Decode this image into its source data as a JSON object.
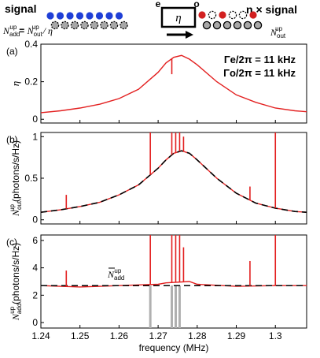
{
  "schematic": {
    "signal_label": "signal",
    "eta_signal_label": "η × signal",
    "coupler_symbol": "η",
    "port_e": "e",
    "port_o": "o",
    "eq_lhs_base": "N",
    "eq_lhs_sub": "add",
    "eq_lhs_sup": "up",
    "eq_eq": "= ",
    "eq_rhs_base": "N",
    "eq_rhs_sub": "out",
    "eq_rhs_sup": "up",
    "eq_tail": " / η",
    "out_base": "N",
    "out_sub": "out",
    "out_sup": "up",
    "colors": {
      "blue": "#1f3fd6",
      "red": "#d22020",
      "gray": "#a8a8a8",
      "dark": "#000000"
    }
  },
  "chart_data": [
    {
      "type": "line",
      "panel_label": "(a)",
      "ylabel": "η",
      "xlim": [
        1.24,
        1.308
      ],
      "ylim": [
        -0.02,
        0.4
      ],
      "yticks": [
        0,
        0.2,
        0.4
      ],
      "ytick_labels": [
        "0",
        "0.2",
        "0.4"
      ],
      "annotations": [
        "Γe/2π = 11 kHz",
        "Γo/2π = 11 kHz"
      ],
      "series": [
        {
          "color": "#e32020",
          "x": [
            1.24,
            1.245,
            1.25,
            1.255,
            1.26,
            1.265,
            1.27,
            1.272,
            1.274,
            1.276,
            1.278,
            1.28,
            1.285,
            1.29,
            1.295,
            1.3,
            1.305,
            1.308
          ],
          "y": [
            0.035,
            0.045,
            0.06,
            0.08,
            0.11,
            0.16,
            0.25,
            0.3,
            0.33,
            0.34,
            0.32,
            0.29,
            0.2,
            0.13,
            0.09,
            0.06,
            0.045,
            0.04
          ]
        }
      ],
      "dip": {
        "x": 1.2735,
        "y": 0.24
      }
    },
    {
      "type": "line",
      "panel_label": "(b)",
      "ylabel_base": "N",
      "ylabel_sub": "out",
      "ylabel_sup": "up",
      "ylabel_unit": "(photons/s/Hz)",
      "xlim": [
        1.24,
        1.308
      ],
      "ylim": [
        -0.05,
        1.05
      ],
      "yticks": [
        0,
        0.5,
        1
      ],
      "ytick_labels": [
        "0",
        "0.5",
        "1"
      ],
      "series": [
        {
          "color": "#e32020",
          "x": [
            1.24,
            1.245,
            1.25,
            1.255,
            1.26,
            1.265,
            1.27,
            1.272,
            1.274,
            1.276,
            1.278,
            1.28,
            1.285,
            1.29,
            1.295,
            1.3,
            1.305,
            1.308
          ],
          "y": [
            0.09,
            0.12,
            0.16,
            0.21,
            0.3,
            0.42,
            0.62,
            0.72,
            0.8,
            0.83,
            0.8,
            0.72,
            0.5,
            0.32,
            0.2,
            0.14,
            0.1,
            0.09
          ]
        },
        {
          "style": "dashed",
          "color": "#000000",
          "x": [
            1.24,
            1.245,
            1.25,
            1.255,
            1.26,
            1.265,
            1.27,
            1.272,
            1.274,
            1.276,
            1.278,
            1.28,
            1.285,
            1.29,
            1.295,
            1.3,
            1.305,
            1.308
          ],
          "y": [
            0.09,
            0.12,
            0.16,
            0.21,
            0.3,
            0.42,
            0.62,
            0.72,
            0.8,
            0.83,
            0.8,
            0.72,
            0.5,
            0.32,
            0.2,
            0.14,
            0.1,
            0.09
          ]
        }
      ],
      "spikes": [
        {
          "x": 1.2465,
          "y": 0.3
        },
        {
          "x": 1.268,
          "y": 1.1
        },
        {
          "x": 1.2735,
          "y": 1.1
        },
        {
          "x": 1.2745,
          "y": 1.1
        },
        {
          "x": 1.2755,
          "y": 1.1
        },
        {
          "x": 1.2765,
          "y": 1.0
        },
        {
          "x": 1.2935,
          "y": 0.4
        },
        {
          "x": 1.3,
          "y": 1.1
        }
      ]
    },
    {
      "type": "line",
      "panel_label": "(c)",
      "ylabel_base": "N",
      "ylabel_sub": "add",
      "ylabel_sup": "up",
      "ylabel_unit": "(photons/s/Hz)",
      "xlabel": "frequency (MHz)",
      "xlim": [
        1.24,
        1.308
      ],
      "ylim": [
        -0.4,
        6.4
      ],
      "yticks": [
        0,
        2,
        4,
        6
      ],
      "ytick_labels": [
        "0",
        "2",
        "4",
        "6"
      ],
      "xticks": [
        1.24,
        1.25,
        1.26,
        1.27,
        1.28,
        1.29,
        1.3
      ],
      "xtick_labels": [
        "1.24",
        "1.25",
        "1.26",
        "1.27",
        "1.28",
        "1.29",
        "1.3"
      ],
      "mean_label_base": "N",
      "mean_label_sub": "add",
      "mean_label_sup": "up",
      "mean_value": 2.7,
      "series": [
        {
          "color": "#e32020",
          "x": [
            1.24,
            1.25,
            1.26,
            1.265,
            1.27,
            1.272,
            1.278,
            1.28,
            1.29,
            1.3,
            1.308
          ],
          "y": [
            2.7,
            2.6,
            2.7,
            2.75,
            2.8,
            2.9,
            3.0,
            2.8,
            2.65,
            2.7,
            2.7
          ]
        }
      ],
      "spikes": [
        {
          "x": 1.2465,
          "y": 3.8
        },
        {
          "x": 1.268,
          "y": 6.6
        },
        {
          "x": 1.2735,
          "y": 6.6
        },
        {
          "x": 1.2745,
          "y": 6.6
        },
        {
          "x": 1.2755,
          "y": 6.6
        },
        {
          "x": 1.2765,
          "y": 5.5
        },
        {
          "x": 1.2935,
          "y": 4.5
        },
        {
          "x": 1.3,
          "y": 6.6
        }
      ],
      "gray_bars": [
        1.268,
        1.2735,
        1.2745,
        1.2755
      ]
    }
  ]
}
